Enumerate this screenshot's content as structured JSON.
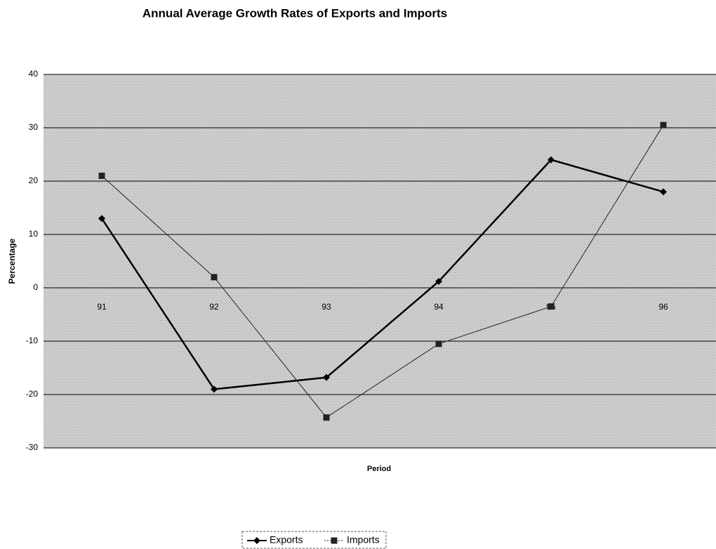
{
  "chart_data": {
    "type": "line",
    "title": "Annual Average Growth Rates of Exports and Imports",
    "x_label": "Period",
    "y_label": "Percentage",
    "categories": [
      "91",
      "92",
      "93",
      "94",
      "95",
      "96"
    ],
    "series": [
      {
        "name": "Exports",
        "color": "#000000",
        "marker": "diamond",
        "values": [
          13,
          -19,
          -16.8,
          1.2,
          24,
          18
        ]
      },
      {
        "name": "Imports",
        "color": "#222222",
        "marker": "square",
        "values": [
          21,
          2,
          -24.3,
          -10.5,
          -3.5,
          30.5
        ]
      }
    ],
    "ylim": [
      -30,
      40
    ],
    "yticks": [
      -30,
      -20,
      -10,
      0,
      10,
      20,
      30,
      40
    ],
    "grid": true,
    "legend": "bottom"
  }
}
